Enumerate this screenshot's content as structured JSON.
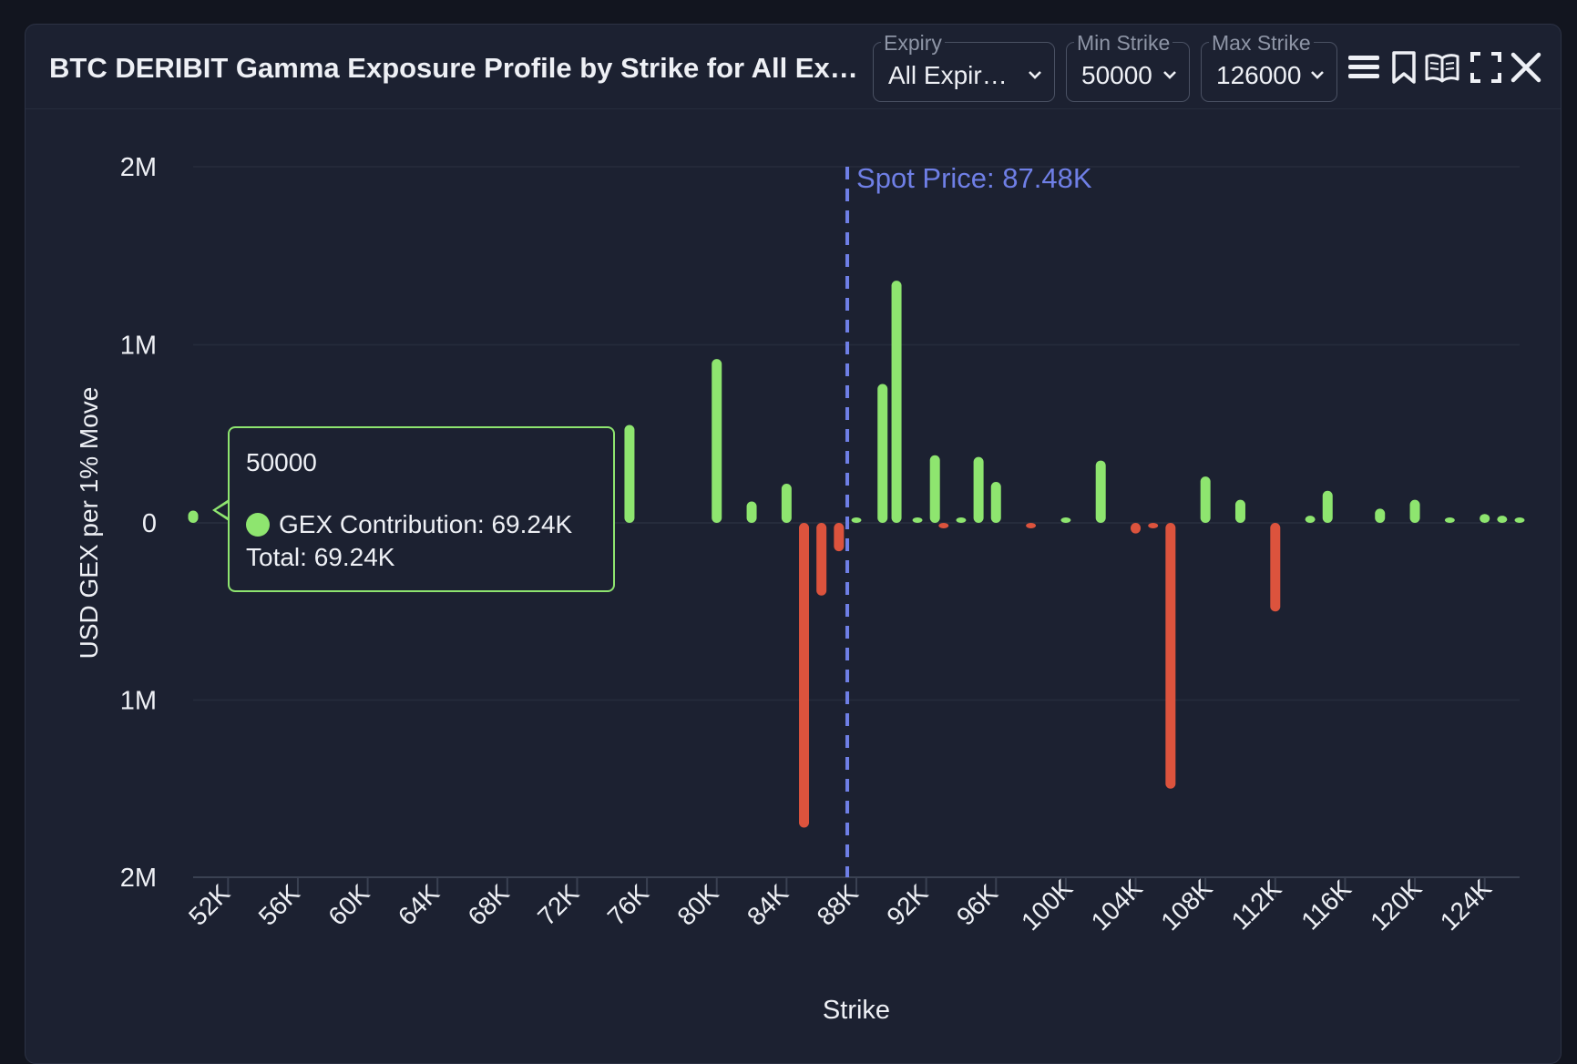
{
  "header": {
    "title": "BTC DERIBIT Gamma Exposure Profile by Strike for All Expiries",
    "expiry": {
      "label": "Expiry",
      "value": "All Expir…"
    },
    "min_strike": {
      "label": "Min Strike",
      "value": "50000"
    },
    "max_strike": {
      "label": "Max Strike",
      "value": "126000"
    }
  },
  "icons": [
    "menu-icon",
    "bookmark-icon",
    "book-icon",
    "fullscreen-icon",
    "close-icon"
  ],
  "colors": {
    "positive": "#8ee56f",
    "negative": "#dc533d",
    "spot_line": "#6f7fe6",
    "grid": "#262c3c",
    "text": "#eef0f5"
  },
  "chart_data": {
    "type": "bar",
    "title": "BTC DERIBIT Gamma Exposure Profile by Strike for All Expiries",
    "xlabel": "Strike",
    "ylabel": "USD GEX per 1% Move",
    "ylim": [
      -2000000,
      2000000
    ],
    "xlim": [
      50000,
      126000
    ],
    "y_ticks": [
      {
        "value": 2000000,
        "label": "2M"
      },
      {
        "value": 1000000,
        "label": "1M"
      },
      {
        "value": 0,
        "label": "0"
      },
      {
        "value": -1000000,
        "label": "1M"
      },
      {
        "value": -2000000,
        "label": "2M"
      }
    ],
    "x_ticks": [
      {
        "value": 52000,
        "label": "52K"
      },
      {
        "value": 56000,
        "label": "56K"
      },
      {
        "value": 60000,
        "label": "60K"
      },
      {
        "value": 64000,
        "label": "64K"
      },
      {
        "value": 68000,
        "label": "68K"
      },
      {
        "value": 72000,
        "label": "72K"
      },
      {
        "value": 76000,
        "label": "76K"
      },
      {
        "value": 80000,
        "label": "80K"
      },
      {
        "value": 84000,
        "label": "84K"
      },
      {
        "value": 88000,
        "label": "88K"
      },
      {
        "value": 92000,
        "label": "92K"
      },
      {
        "value": 96000,
        "label": "96K"
      },
      {
        "value": 100000,
        "label": "100K"
      },
      {
        "value": 104000,
        "label": "104K"
      },
      {
        "value": 108000,
        "label": "108K"
      },
      {
        "value": 112000,
        "label": "112K"
      },
      {
        "value": 116000,
        "label": "116K"
      },
      {
        "value": 120000,
        "label": "120K"
      },
      {
        "value": 124000,
        "label": "124K"
      }
    ],
    "series": [
      {
        "name": "GEX Contribution",
        "points": [
          {
            "x": 50000,
            "y": 69240
          },
          {
            "x": 75000,
            "y": 550000
          },
          {
            "x": 80000,
            "y": 920000
          },
          {
            "x": 82000,
            "y": 120000
          },
          {
            "x": 84000,
            "y": 220000
          },
          {
            "x": 85000,
            "y": -1720000
          },
          {
            "x": 86000,
            "y": -410000
          },
          {
            "x": 87000,
            "y": -160000
          },
          {
            "x": 88000,
            "y": 20000
          },
          {
            "x": 89500,
            "y": 780000
          },
          {
            "x": 90300,
            "y": 1360000
          },
          {
            "x": 91500,
            "y": 30000
          },
          {
            "x": 92500,
            "y": 380000
          },
          {
            "x": 93000,
            "y": -20000
          },
          {
            "x": 94000,
            "y": 30000
          },
          {
            "x": 95000,
            "y": 370000
          },
          {
            "x": 96000,
            "y": 230000
          },
          {
            "x": 98000,
            "y": -30000
          },
          {
            "x": 100000,
            "y": 30000
          },
          {
            "x": 102000,
            "y": 350000
          },
          {
            "x": 104000,
            "y": -60000
          },
          {
            "x": 105000,
            "y": -15000
          },
          {
            "x": 106000,
            "y": -1500000
          },
          {
            "x": 108000,
            "y": 260000
          },
          {
            "x": 110000,
            "y": 130000
          },
          {
            "x": 112000,
            "y": -500000
          },
          {
            "x": 114000,
            "y": 40000
          },
          {
            "x": 115000,
            "y": 180000
          },
          {
            "x": 118000,
            "y": 80000
          },
          {
            "x": 120000,
            "y": 130000
          },
          {
            "x": 122000,
            "y": 10000
          },
          {
            "x": 124000,
            "y": 50000
          },
          {
            "x": 125000,
            "y": 40000
          },
          {
            "x": 126000,
            "y": 30000
          }
        ]
      }
    ],
    "spot_price": {
      "value": 87480,
      "label": "Spot Price: 87.48K"
    },
    "tooltip": {
      "strike": "50000",
      "contribution_label": "GEX Contribution: 69.24K",
      "total_label": "Total: 69.24K"
    }
  }
}
